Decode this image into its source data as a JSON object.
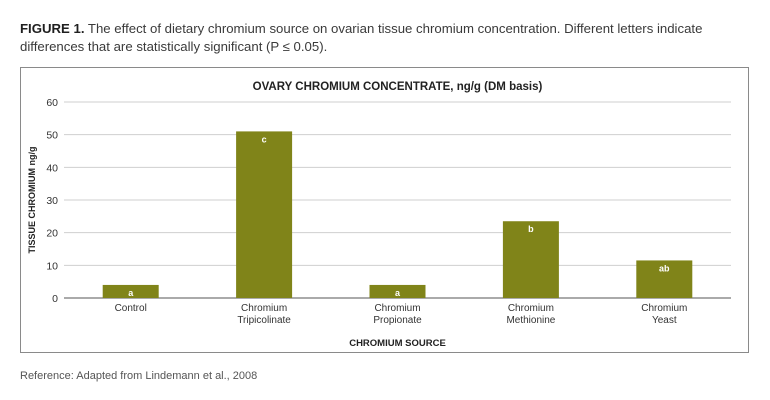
{
  "figure": {
    "label": "FIGURE 1.",
    "caption": "The effect of dietary chromium source on ovarian tissue chromium concentration. Different letters indicate differences that are statistically significant (P ≤ 0.05).",
    "reference": "Reference: Adapted from Lindemann et al., 2008"
  },
  "chart_data": {
    "type": "bar",
    "title": "OVARY CHROMIUM CONCENTRATE, ng/g (DM basis)",
    "xlabel": "CHROMIUM SOURCE",
    "ylabel": "TISSUE CHROMIUM ng/g",
    "ylim": [
      0,
      60
    ],
    "yticks": [
      0,
      10,
      20,
      30,
      40,
      50,
      60
    ],
    "grid": true,
    "bar_color": "#808419",
    "categories": [
      [
        "Control"
      ],
      [
        "Chromium",
        "Tripicolinate"
      ],
      [
        "Chromium",
        "Propionate"
      ],
      [
        "Chromium",
        "Methionine"
      ],
      [
        "Chromium",
        "Yeast"
      ]
    ],
    "values": [
      4,
      51,
      4,
      23.5,
      11.5
    ],
    "data_labels": [
      "a",
      "c",
      "a",
      "b",
      "ab"
    ]
  }
}
